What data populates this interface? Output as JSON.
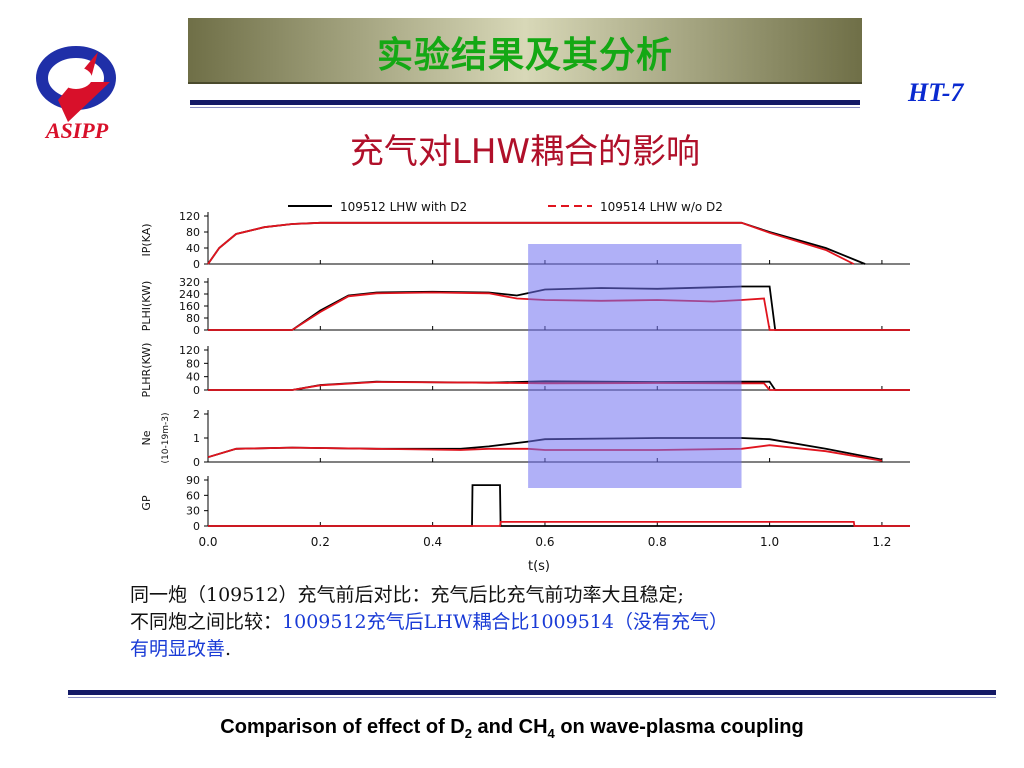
{
  "header": {
    "logo_text": "ASIPP",
    "title": "实验结果及其分析",
    "badge": "HT-7",
    "subtitle": "充气对LHW耦合的影响"
  },
  "caption": {
    "line1": "同一炮（109512）充气前后对比：充气后比充气前功率大且稳定;",
    "line2_prefix": "不同炮之间比较：",
    "line2_highlight": "1009512充气后LHW耦合比1009514（没有充气）",
    "line3_highlight": "有明显改善",
    "line3_suffix": "."
  },
  "footer": {
    "part1": "Comparison of effect of D",
    "sub1": "2",
    "part2": " and CH",
    "sub2": "4",
    "part3": " on wave-plasma coupling"
  },
  "chart_data": {
    "type": "line",
    "xlabel": "t(s)",
    "xlim": [
      0.0,
      1.25
    ],
    "xticks": [
      "0.0",
      "0.2",
      "0.4",
      "0.6",
      "0.8",
      "1.0",
      "1.2"
    ],
    "highlight_region": [
      0.57,
      0.95
    ],
    "legend": [
      {
        "label": "109512 LHW with D2",
        "color": "#000000",
        "style": "solid"
      },
      {
        "label": "109514 LHW w/o D2",
        "color": "#e0141e",
        "style": "dashed"
      }
    ],
    "panels": [
      {
        "ylabel": "IP(KA)",
        "ylim": [
          0,
          120
        ],
        "yticks": [
          "120",
          "80",
          "40",
          "0"
        ],
        "series": [
          {
            "name": "109512",
            "color": "#000000",
            "x": [
              0.0,
              0.02,
              0.05,
              0.1,
              0.15,
              0.2,
              0.6,
              0.95,
              1.0,
              1.1,
              1.17
            ],
            "y": [
              0,
              40,
              75,
              92,
              100,
              103,
              103,
              103,
              80,
              40,
              0
            ]
          },
          {
            "name": "109514",
            "color": "#e0141e",
            "x": [
              0.0,
              0.02,
              0.05,
              0.1,
              0.15,
              0.2,
              0.6,
              0.95,
              1.0,
              1.1,
              1.15
            ],
            "y": [
              0,
              40,
              75,
              92,
              100,
              103,
              103,
              103,
              78,
              35,
              0
            ]
          }
        ]
      },
      {
        "ylabel": "PLHI(KW)",
        "ylim": [
          0,
          320
        ],
        "yticks": [
          "320",
          "240",
          "160",
          "80",
          "0"
        ],
        "series": [
          {
            "name": "109512",
            "color": "#000000",
            "x": [
              0.0,
              0.15,
              0.2,
              0.25,
              0.3,
              0.4,
              0.5,
              0.55,
              0.6,
              0.7,
              0.8,
              0.9,
              0.95,
              1.0,
              1.01,
              1.25
            ],
            "y": [
              0,
              0,
              130,
              230,
              250,
              255,
              250,
              230,
              270,
              280,
              275,
              285,
              290,
              290,
              0,
              0
            ]
          },
          {
            "name": "109514",
            "color": "#e0141e",
            "x": [
              0.0,
              0.15,
              0.2,
              0.25,
              0.3,
              0.4,
              0.5,
              0.55,
              0.6,
              0.7,
              0.8,
              0.9,
              0.95,
              0.99,
              1.0,
              1.25
            ],
            "y": [
              0,
              0,
              120,
              225,
              245,
              250,
              245,
              210,
              200,
              195,
              200,
              190,
              200,
              210,
              0,
              0
            ]
          }
        ]
      },
      {
        "ylabel": "PLHR(KW)",
        "ylim": [
          0,
          120
        ],
        "yticks": [
          "120",
          "80",
          "40",
          "0"
        ],
        "series": [
          {
            "name": "109512",
            "color": "#000000",
            "x": [
              0.0,
              0.15,
              0.2,
              0.3,
              0.5,
              0.6,
              0.8,
              0.95,
              1.0,
              1.01,
              1.25
            ],
            "y": [
              0,
              0,
              15,
              25,
              22,
              26,
              24,
              25,
              25,
              0,
              0
            ]
          },
          {
            "name": "109514",
            "color": "#e0141e",
            "x": [
              0.0,
              0.15,
              0.2,
              0.3,
              0.5,
              0.6,
              0.8,
              0.95,
              0.99,
              1.0,
              1.25
            ],
            "y": [
              0,
              0,
              14,
              24,
              22,
              20,
              21,
              20,
              20,
              0,
              0
            ]
          }
        ]
      },
      {
        "ylabel": "Ne",
        "yunit": "(10-19m-3)",
        "ylim": [
          0,
          2
        ],
        "yticks": [
          "2",
          "1",
          "0"
        ],
        "series": [
          {
            "name": "109512",
            "color": "#000000",
            "x": [
              0.0,
              0.05,
              0.15,
              0.3,
              0.45,
              0.5,
              0.57,
              0.6,
              0.8,
              0.95,
              1.0,
              1.1,
              1.2
            ],
            "y": [
              0.2,
              0.55,
              0.6,
              0.55,
              0.55,
              0.65,
              0.85,
              0.95,
              1.0,
              1.0,
              0.95,
              0.55,
              0.1
            ]
          },
          {
            "name": "109514",
            "color": "#e0141e",
            "x": [
              0.0,
              0.05,
              0.15,
              0.3,
              0.45,
              0.5,
              0.57,
              0.6,
              0.8,
              0.95,
              1.0,
              1.1,
              1.2
            ],
            "y": [
              0.2,
              0.55,
              0.6,
              0.55,
              0.5,
              0.55,
              0.55,
              0.5,
              0.5,
              0.55,
              0.7,
              0.45,
              0.05
            ]
          }
        ]
      },
      {
        "ylabel": "GP",
        "ylim": [
          0,
          90
        ],
        "yticks": [
          "90",
          "60",
          "30",
          "0"
        ],
        "series": [
          {
            "name": "109512",
            "color": "#000000",
            "x": [
              0.0,
              0.47,
              0.471,
              0.52,
              0.521,
              1.25
            ],
            "y": [
              0,
              0,
              80,
              80,
              0,
              0
            ]
          },
          {
            "name": "109514",
            "color": "#e0141e",
            "x": [
              0.0,
              0.52,
              0.521,
              1.15,
              1.151,
              1.25
            ],
            "y": [
              0,
              0,
              8,
              8,
              0,
              0
            ]
          }
        ]
      }
    ]
  }
}
